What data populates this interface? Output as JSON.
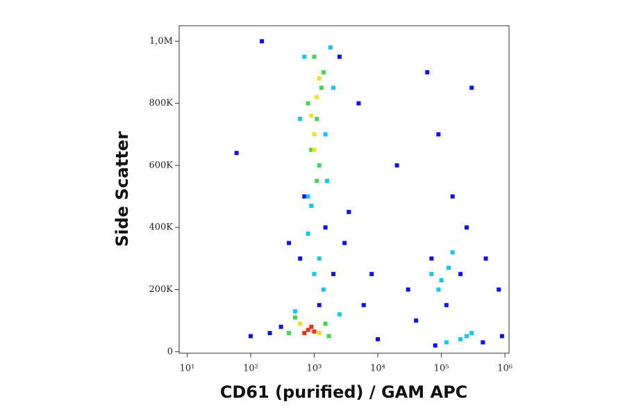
{
  "chart_data": {
    "type": "scatter",
    "xlabel": "CD61 (purified) / GAM APC",
    "ylabel": "Side Scatter",
    "xscale": "log",
    "xlim": [
      7.5,
      1160000
    ],
    "ylim": [
      -5000,
      1050000
    ],
    "xticks": [
      {
        "value": 10,
        "label": "10¹"
      },
      {
        "value": 100,
        "label": "10²"
      },
      {
        "value": 1000,
        "label": "10³"
      },
      {
        "value": 10000,
        "label": "10⁴"
      },
      {
        "value": 100000,
        "label": "10⁵"
      },
      {
        "value": 1000000,
        "label": "10⁶"
      }
    ],
    "yticks": [
      0,
      {
        "value": 200000,
        "label": "200K"
      },
      {
        "value": 400000,
        "label": "400K"
      },
      {
        "value": 600000,
        "label": "600K"
      },
      {
        "value": 800000,
        "label": "800K"
      },
      {
        "value": 1000000,
        "label": "1,0M"
      }
    ],
    "series": [
      {
        "color": "#1010ff",
        "x": [
          150,
          60,
          2500,
          5000,
          20000,
          3000,
          8000,
          60000,
          90000,
          150000,
          300000,
          500000,
          800000,
          40000,
          250000,
          120000,
          400,
          300,
          200,
          3500,
          1500,
          600,
          700,
          70000,
          200000,
          30000,
          900000,
          10000,
          6000,
          1200,
          2000,
          450000,
          80000,
          100
        ],
        "values": [
          1000000,
          640000,
          950000,
          800000,
          600000,
          350000,
          250000,
          900000,
          700000,
          500000,
          850000,
          300000,
          200000,
          100000,
          400000,
          150000,
          350000,
          80000,
          60000,
          450000,
          400000,
          300000,
          500000,
          300000,
          250000,
          200000,
          50000,
          40000,
          150000,
          150000,
          250000,
          30000,
          20000,
          50000
        ]
      },
      {
        "color": "#10c8f0",
        "x": [
          700,
          1800,
          800,
          1600,
          900,
          1500,
          600,
          2000,
          1200,
          1000,
          500,
          2500,
          1400,
          800,
          70000,
          100000,
          130000,
          90000,
          150000,
          200000,
          120000,
          250000,
          300000
        ],
        "values": [
          950000,
          980000,
          500000,
          550000,
          470000,
          700000,
          750000,
          850000,
          300000,
          250000,
          130000,
          120000,
          200000,
          380000,
          250000,
          230000,
          270000,
          200000,
          320000,
          40000,
          30000,
          50000,
          60000
        ]
      },
      {
        "color": "#40d850",
        "x": [
          900,
          1100,
          1300,
          1000,
          1200,
          800,
          1400,
          1100,
          400,
          1700,
          500,
          1500
        ],
        "values": [
          650000,
          750000,
          850000,
          950000,
          600000,
          800000,
          900000,
          550000,
          60000,
          50000,
          110000,
          90000
        ]
      },
      {
        "color": "#f0e020",
        "x": [
          1000,
          1100,
          900,
          1200,
          600,
          1200,
          1000
        ],
        "values": [
          700000,
          820000,
          760000,
          880000,
          90000,
          60000,
          650000
        ]
      },
      {
        "color": "#f03010",
        "x": [
          800,
          700,
          900,
          1000
        ],
        "values": [
          70000,
          60000,
          80000,
          65000
        ]
      }
    ]
  }
}
